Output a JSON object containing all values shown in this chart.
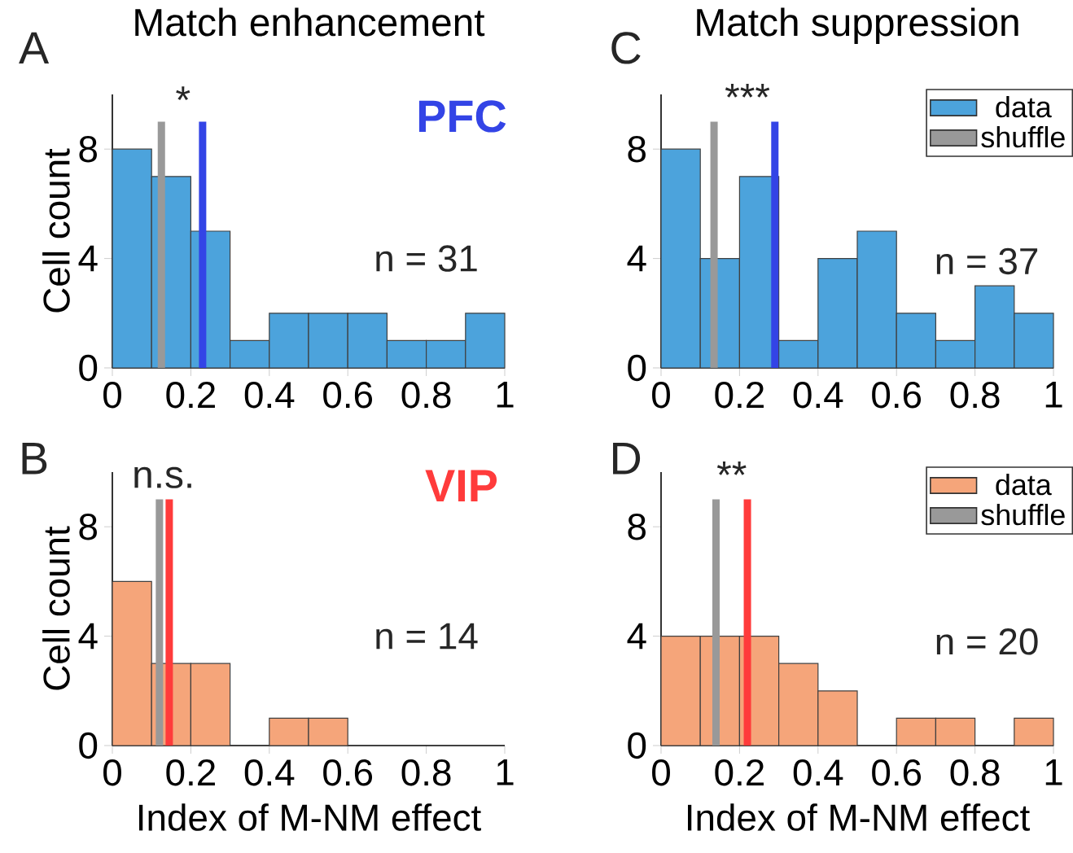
{
  "chart_data": [
    {
      "type": "histogram",
      "title": "Match enhancement",
      "ylabel": "Cell count",
      "annotations": [
        "A",
        "*",
        "PFC",
        "n = 31"
      ],
      "bins": [
        0,
        0.1,
        0.2,
        0.3,
        0.4,
        0.5,
        0.6,
        0.7,
        0.8,
        0.9,
        1
      ],
      "xlim": [
        0,
        1
      ],
      "ylim": [
        0,
        10
      ],
      "xticks": [
        0,
        0.2,
        0.4,
        0.6,
        0.8,
        1
      ],
      "yticks": [
        0,
        4,
        8
      ],
      "series": [
        {
          "color": "#4ca3dc",
          "values": [
            8,
            7,
            5,
            1,
            2,
            2,
            2,
            1,
            1,
            2
          ]
        },
        {
          "type": "line",
          "color": "#999999",
          "x": [
            0.125,
            0.125
          ],
          "values": [
            0,
            9
          ]
        },
        {
          "type": "line",
          "color": "#3344e6",
          "x": [
            0.23,
            0.23
          ],
          "values": [
            0,
            9
          ]
        }
      ]
    },
    {
      "type": "histogram",
      "title": "Match suppression",
      "annotations": [
        "C",
        "***",
        "n = 37"
      ],
      "bins": [
        0,
        0.1,
        0.2,
        0.3,
        0.4,
        0.5,
        0.6,
        0.7,
        0.8,
        0.9,
        1
      ],
      "xlim": [
        0,
        1
      ],
      "ylim": [
        0,
        10
      ],
      "xticks": [
        0,
        0.2,
        0.4,
        0.6,
        0.8,
        1
      ],
      "yticks": [
        0,
        4,
        8
      ],
      "legend": "top right",
      "series": [
        {
          "name": "data",
          "color": "#4ca3dc",
          "values": [
            8,
            4,
            7,
            1,
            4,
            5,
            2,
            1,
            3,
            2
          ]
        },
        {
          "type": "line",
          "name": "shuffle",
          "color": "#999999",
          "x": [
            0.135,
            0.135
          ],
          "values": [
            0,
            9
          ]
        },
        {
          "type": "line",
          "color": "#3344e6",
          "x": [
            0.29,
            0.29
          ],
          "values": [
            0,
            9
          ]
        }
      ]
    },
    {
      "type": "histogram",
      "xlabel": "Index of M-NM effect",
      "ylabel": "Cell count",
      "annotations": [
        "B",
        "n.s.",
        "VIP",
        "n = 14"
      ],
      "bins": [
        0,
        0.1,
        0.2,
        0.3,
        0.4,
        0.5,
        0.6,
        0.7,
        0.8,
        0.9,
        1
      ],
      "xlim": [
        0,
        1
      ],
      "ylim": [
        0,
        10
      ],
      "xticks": [
        0,
        0.2,
        0.4,
        0.6,
        0.8,
        1
      ],
      "yticks": [
        0,
        4,
        8
      ],
      "series": [
        {
          "color": "#f5a57a",
          "values": [
            6,
            3,
            3,
            0,
            1,
            1,
            0,
            0,
            0,
            0
          ]
        },
        {
          "type": "line",
          "color": "#999999",
          "x": [
            0.12,
            0.12
          ],
          "values": [
            0,
            9
          ]
        },
        {
          "type": "line",
          "color": "#ff3b3b",
          "x": [
            0.145,
            0.145
          ],
          "values": [
            0,
            9
          ]
        }
      ]
    },
    {
      "type": "histogram",
      "xlabel": "Index of M-NM effect",
      "annotations": [
        "D",
        "**",
        "n = 20"
      ],
      "bins": [
        0,
        0.1,
        0.2,
        0.3,
        0.4,
        0.5,
        0.6,
        0.7,
        0.8,
        0.9,
        1
      ],
      "xlim": [
        0,
        1
      ],
      "ylim": [
        0,
        10
      ],
      "xticks": [
        0,
        0.2,
        0.4,
        0.6,
        0.8,
        1
      ],
      "yticks": [
        0,
        4,
        8
      ],
      "legend": "top right",
      "series": [
        {
          "name": "data",
          "color": "#f5a57a",
          "values": [
            4,
            4,
            4,
            3,
            2,
            0,
            1,
            1,
            0,
            1
          ]
        },
        {
          "type": "line",
          "name": "shuffle",
          "color": "#999999",
          "x": [
            0.14,
            0.14
          ],
          "values": [
            0,
            9
          ]
        },
        {
          "type": "line",
          "color": "#ff3b3b",
          "x": [
            0.22,
            0.22
          ],
          "values": [
            0,
            9
          ]
        }
      ]
    }
  ]
}
